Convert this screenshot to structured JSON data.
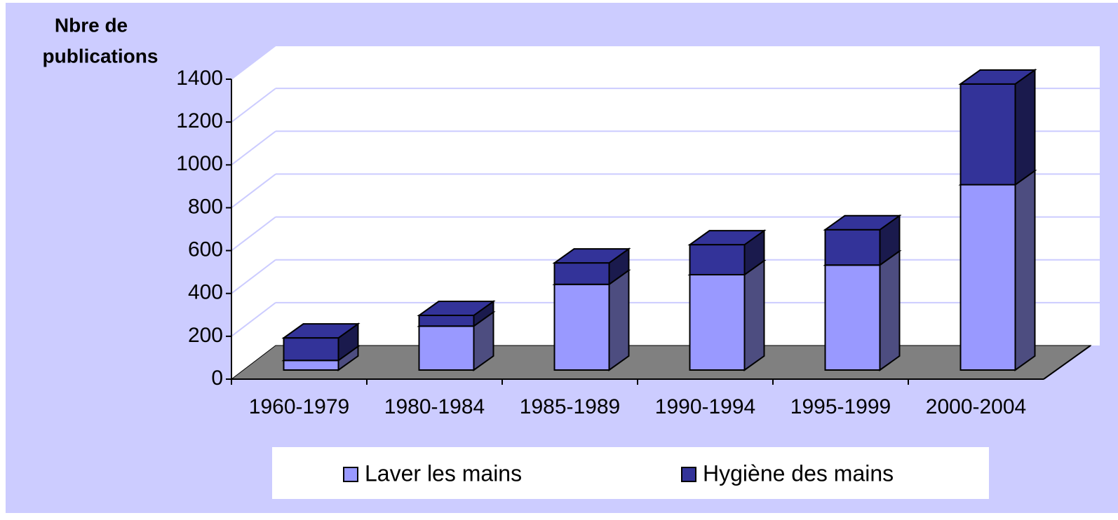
{
  "chart_data": {
    "type": "bar3d_stacked",
    "ylabel": [
      "Nbre de",
      "publications"
    ],
    "categories": [
      "1960-1979",
      "1980-1984",
      "1985-1989",
      "1990-1994",
      "1995-1999",
      "2000-2004"
    ],
    "series": [
      {
        "name": "Laver les mains",
        "color": "#9999ff",
        "side": "#4d4d80",
        "values": [
          45,
          205,
          400,
          445,
          490,
          865
        ]
      },
      {
        "name": "Hygiène des mains",
        "color": "#333399",
        "side": "#1a1a4d",
        "values": [
          105,
          50,
          100,
          140,
          165,
          470
        ]
      }
    ],
    "ylim": [
      0,
      1400
    ],
    "yticks": [
      0,
      200,
      400,
      600,
      800,
      1000,
      1200,
      1400
    ],
    "grid": true
  }
}
